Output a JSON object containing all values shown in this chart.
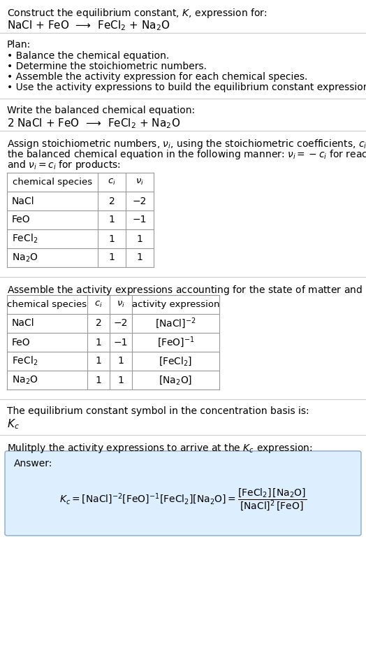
{
  "title_line1": "Construct the equilibrium constant, $K$, expression for:",
  "title_line2": "NaCl + FeO  ⟶  FeCl$_2$ + Na$_2$O",
  "plan_header": "Plan:",
  "plan_bullets": [
    "• Balance the chemical equation.",
    "• Determine the stoichiometric numbers.",
    "• Assemble the activity expression for each chemical species.",
    "• Use the activity expressions to build the equilibrium constant expression."
  ],
  "balanced_header": "Write the balanced chemical equation:",
  "balanced_eq": "2 NaCl + FeO  ⟶  FeCl$_2$ + Na$_2$O",
  "stoich_header_lines": [
    "Assign stoichiometric numbers, $\\nu_i$, using the stoichiometric coefficients, $c_i$, from",
    "the balanced chemical equation in the following manner: $\\nu_i = -c_i$ for reactants",
    "and $\\nu_i = c_i$ for products:"
  ],
  "table1_headers": [
    "chemical species",
    "$c_i$",
    "$\\nu_i$"
  ],
  "table1_rows": [
    [
      "NaCl",
      "2",
      "−2"
    ],
    [
      "FeO",
      "1",
      "−1"
    ],
    [
      "FeCl$_2$",
      "1",
      "1"
    ],
    [
      "Na$_2$O",
      "1",
      "1"
    ]
  ],
  "activity_header": "Assemble the activity expressions accounting for the state of matter and $\\nu_i$:",
  "table2_headers": [
    "chemical species",
    "$c_i$",
    "$\\nu_i$",
    "activity expression"
  ],
  "table2_rows": [
    [
      "NaCl",
      "2",
      "−2",
      "[NaCl]$^{-2}$"
    ],
    [
      "FeO",
      "1",
      "−1",
      "[FeO]$^{-1}$"
    ],
    [
      "FeCl$_2$",
      "1",
      "1",
      "[FeCl$_2$]"
    ],
    [
      "Na$_2$O",
      "1",
      "1",
      "[Na$_2$O]"
    ]
  ],
  "kc_symbol_header": "The equilibrium constant symbol in the concentration basis is:",
  "kc_symbol": "$K_c$",
  "multiply_header": "Mulitply the activity expressions to arrive at the $K_c$ expression:",
  "answer_label": "Answer:",
  "bg_color": "#ffffff",
  "table_border_color": "#999999",
  "answer_bg_color": "#ddeeff",
  "answer_border_color": "#88aacc",
  "text_color": "#000000",
  "font_size": 10,
  "separator_color": "#cccccc"
}
